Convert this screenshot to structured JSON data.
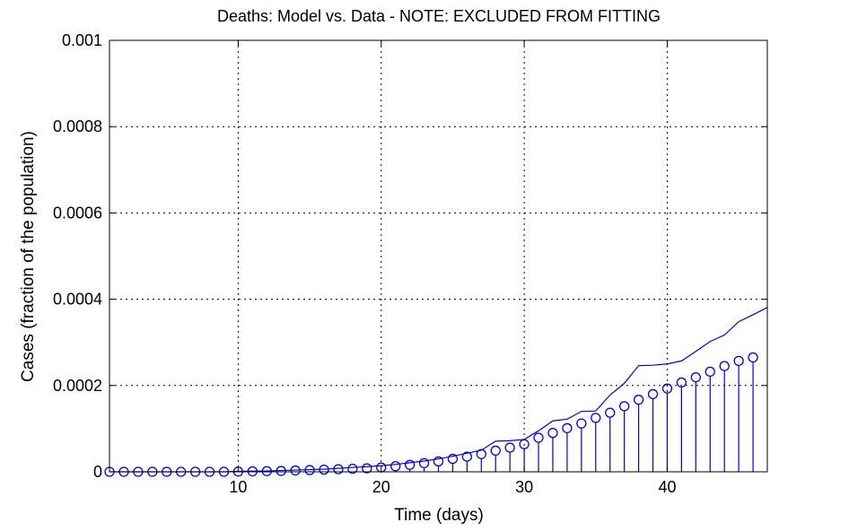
{
  "chart_data": {
    "type": "line",
    "title": "Deaths: Model vs. Data - NOTE: EXCLUDED FROM FITTING",
    "xlabel": "Time (days)",
    "ylabel": "Cases (fraction of the population)",
    "xlim": [
      1,
      47
    ],
    "ylim": [
      0,
      0.001
    ],
    "xticks": [
      10,
      20,
      30,
      40
    ],
    "xtick_labels": [
      "10",
      "20",
      "30",
      "40"
    ],
    "yticks": [
      0,
      0.0002,
      0.0004,
      0.0006,
      0.0008,
      0.001
    ],
    "ytick_labels": [
      "0",
      "0.0002",
      "0.0004",
      "0.0006",
      "0.0008",
      "0.001"
    ],
    "grid": true,
    "colors": {
      "series": "#0000e0"
    },
    "series": [
      {
        "style": "stem-circle",
        "x": [
          1,
          2,
          3,
          4,
          5,
          6,
          7,
          8,
          9,
          10,
          11,
          12,
          13,
          14,
          15,
          16,
          17,
          18,
          19,
          20,
          21,
          22,
          23,
          24,
          25,
          26,
          27,
          28,
          29,
          30,
          31,
          32,
          33,
          34,
          35,
          36,
          37,
          38,
          39,
          40,
          41,
          42,
          43,
          44,
          45,
          46
        ],
        "values": [
          0,
          0,
          0,
          0,
          0,
          0,
          0,
          0,
          0,
          5e-07,
          1e-06,
          1.5e-06,
          2e-06,
          3e-06,
          4e-06,
          5e-06,
          6e-06,
          7e-06,
          8e-06,
          1e-05,
          1.3e-05,
          1.6e-05,
          2e-05,
          2.4e-05,
          3e-05,
          3.5e-05,
          4.1e-05,
          4.9e-05,
          5.6e-05,
          6.4e-05,
          7.9e-05,
          9e-05,
          0.000101,
          0.000112,
          0.000125,
          0.000137,
          0.000152,
          0.000167,
          0.00018,
          0.000193,
          0.000207,
          0.000219,
          0.000232,
          0.000245,
          0.000257,
          0.000265
        ]
      },
      {
        "style": "line",
        "x": [
          1,
          2,
          3,
          4,
          5,
          6,
          7,
          8,
          9,
          10,
          11,
          12,
          13,
          14,
          15,
          16,
          17,
          18,
          19,
          20,
          21,
          22,
          23,
          24,
          25,
          26,
          27,
          28,
          29,
          30,
          31,
          32,
          33,
          34,
          35,
          36,
          37,
          38,
          39,
          40,
          41,
          42,
          43,
          44,
          45,
          46,
          47
        ],
        "values": [
          0,
          0,
          0,
          0,
          0,
          0,
          0,
          0,
          0,
          1e-06,
          1.5e-06,
          2e-06,
          3e-06,
          4e-06,
          5e-06,
          6e-06,
          8e-06,
          1e-05,
          1.2e-05,
          1.4e-05,
          1.7e-05,
          2.1e-05,
          2.5e-05,
          3e-05,
          3.6e-05,
          4.3e-05,
          5e-05,
          7.1e-05,
          7.2e-05,
          7.5e-05,
          9.5e-05,
          0.000118,
          0.000122,
          0.00014,
          0.000141,
          0.000178,
          0.000205,
          0.000246,
          0.000247,
          0.00025,
          0.000257,
          0.000279,
          0.000302,
          0.000317,
          0.000348,
          0.000364,
          0.000381
        ]
      }
    ]
  }
}
